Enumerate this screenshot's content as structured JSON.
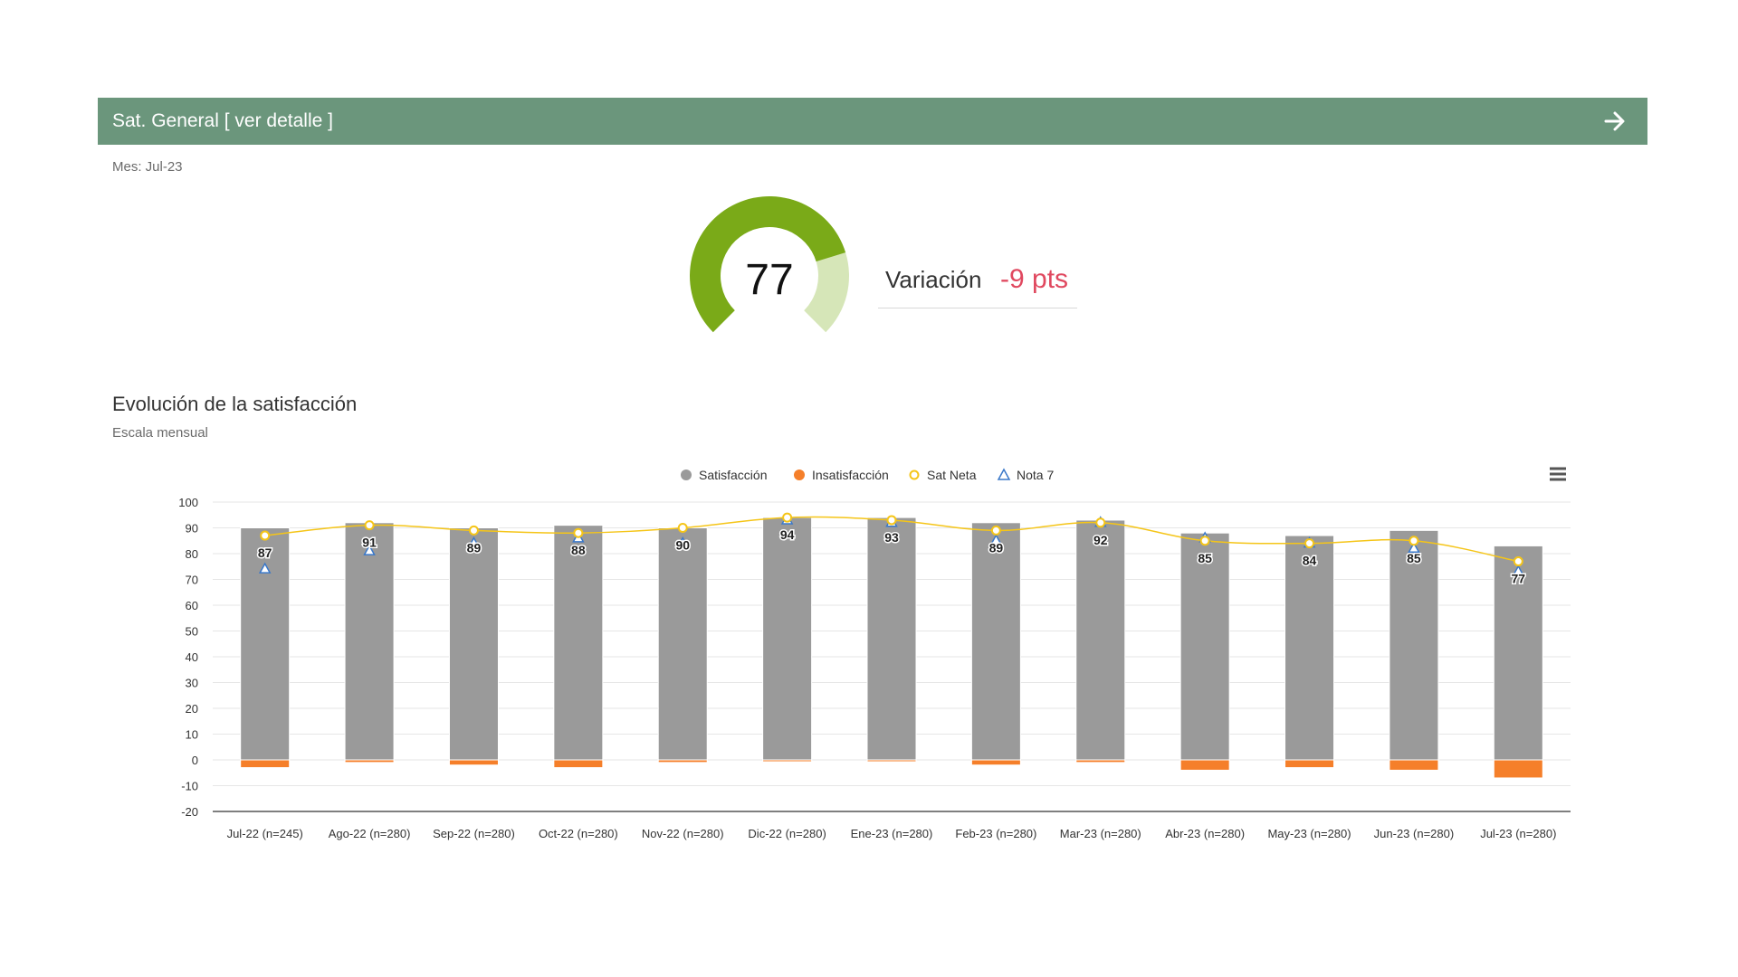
{
  "header": {
    "title": "Sat. General [ ver detalle ]"
  },
  "month_label": "Mes: Jul-23",
  "gauge": {
    "value": "77",
    "fill_fraction": 0.77,
    "color": "#7aaa18",
    "track_color": "#d6e6b8"
  },
  "variation": {
    "label": "Variación",
    "value": "-9 pts"
  },
  "section": {
    "title": "Evolución de la satisfacción",
    "subtitle": "Escala mensual"
  },
  "icons": {
    "header_arrow": "arrow-right-icon",
    "chart_menu": "hamburger-menu-icon"
  },
  "colors": {
    "header": "#6b967c",
    "satisfaccion": "#9a9a9a",
    "insatisfaccion": "#f57f2a",
    "sat_neta": "#f5c518",
    "nota7": "#3a78c9",
    "variation": "#e0485f"
  },
  "chart_data": {
    "type": "bar",
    "title": "",
    "categories": [
      "Jul-22 (n=245)",
      "Ago-22 (n=280)",
      "Sep-22 (n=280)",
      "Oct-22 (n=280)",
      "Nov-22 (n=280)",
      "Dic-22 (n=280)",
      "Ene-23 (n=280)",
      "Feb-23 (n=280)",
      "Mar-23 (n=280)",
      "Abr-23 (n=280)",
      "May-23 (n=280)",
      "Jun-23 (n=280)",
      "Jul-23 (n=280)"
    ],
    "legend_position": "top-center",
    "grid": true,
    "ylim": [
      -20,
      100
    ],
    "yticks": [
      100,
      90,
      80,
      70,
      60,
      50,
      40,
      30,
      20,
      10,
      0,
      -10,
      -20
    ],
    "series": [
      {
        "name": "Satisfacción",
        "kind": "bar",
        "values": [
          90,
          92,
          90,
          91,
          90,
          94,
          94,
          92,
          93,
          88,
          87,
          89,
          83
        ]
      },
      {
        "name": "Insatisfacción",
        "kind": "bar",
        "values": [
          -3,
          -1,
          -2,
          -3,
          -1,
          0,
          0,
          -2,
          -1,
          -4,
          -3,
          -4,
          -7
        ]
      },
      {
        "name": "Sat Neta",
        "kind": "line",
        "values": [
          87,
          91,
          89,
          88,
          90,
          94,
          93,
          89,
          92,
          85,
          84,
          85,
          77
        ]
      },
      {
        "name": "Nota 7",
        "kind": "scatter",
        "values": [
          74,
          81,
          84,
          86,
          84,
          93,
          92,
          85,
          92,
          86,
          84,
          82,
          73
        ]
      }
    ]
  }
}
